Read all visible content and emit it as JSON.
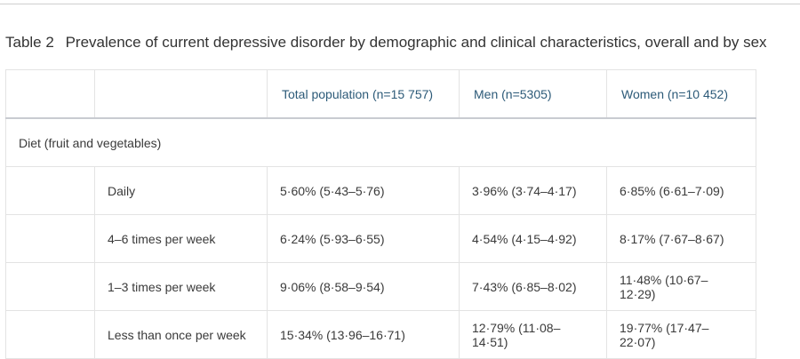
{
  "table": {
    "label": "Table 2",
    "title": "Prevalence of current depressive disorder by demographic and clinical characteristics, overall and by sex",
    "columns": [
      "",
      "",
      "Total population (n=15 757)",
      "Men (n=5305)",
      "Women (n=10 452)"
    ],
    "section": "Diet (fruit and vegetables)",
    "rows": [
      {
        "label": "Daily",
        "total": "5·60% (5·43–5·76)",
        "men": "3·96% (3·74–4·17)",
        "women": "6·85% (6·61–7·09)"
      },
      {
        "label": "4–6 times per week",
        "total": "6·24% (5·93–6·55)",
        "men": "4·54% (4·15–4·92)",
        "women": "8·17% (7·67–8·67)"
      },
      {
        "label": "1–3 times per week",
        "total": "9·06% (8·58–9·54)",
        "men": "7·43% (6·85–8·02)",
        "women": "11·48% (10·67–12·29)"
      },
      {
        "label": "Less than once per week",
        "total": "15·34% (13·96–16·71)",
        "men": "12·79% (11·08–14·51)",
        "women": "19·77% (17·47–22·07)"
      }
    ]
  }
}
